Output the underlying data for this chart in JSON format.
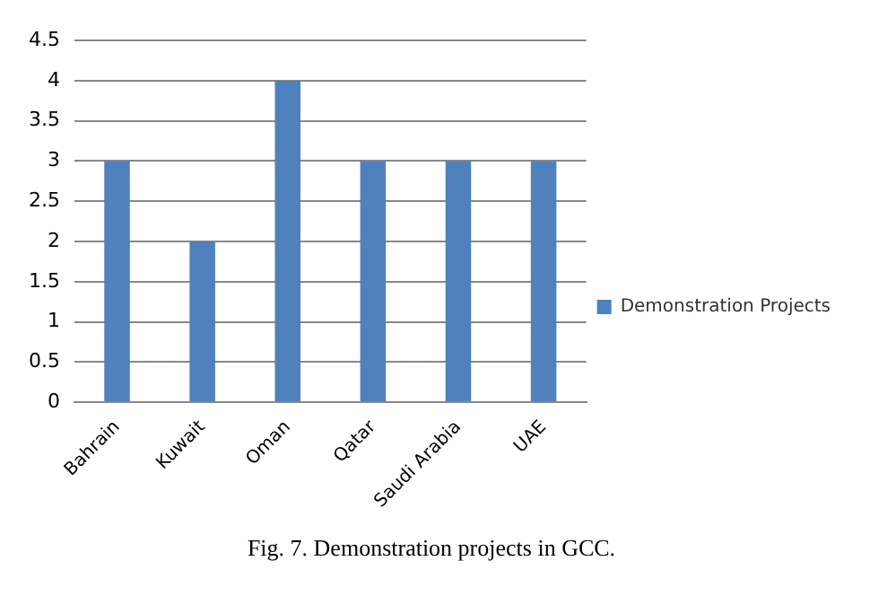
{
  "chart_data": {
    "type": "bar",
    "title": "Fig. 7. Demonstration projects in GCC.",
    "categories": [
      "Bahrain",
      "Kuwait",
      "Oman",
      "Qatar",
      "Saudi Arabia",
      "UAE"
    ],
    "series": [
      {
        "name": "Demonstration Projects",
        "color": "#4f81bd",
        "values": [
          3,
          2,
          4,
          3,
          3,
          3
        ]
      }
    ],
    "ylim": [
      0,
      4.5
    ],
    "yticks": [
      0,
      0.5,
      1,
      1.5,
      2,
      2.5,
      3,
      3.5,
      4,
      4.5
    ],
    "grid": "y",
    "legend": "right"
  }
}
